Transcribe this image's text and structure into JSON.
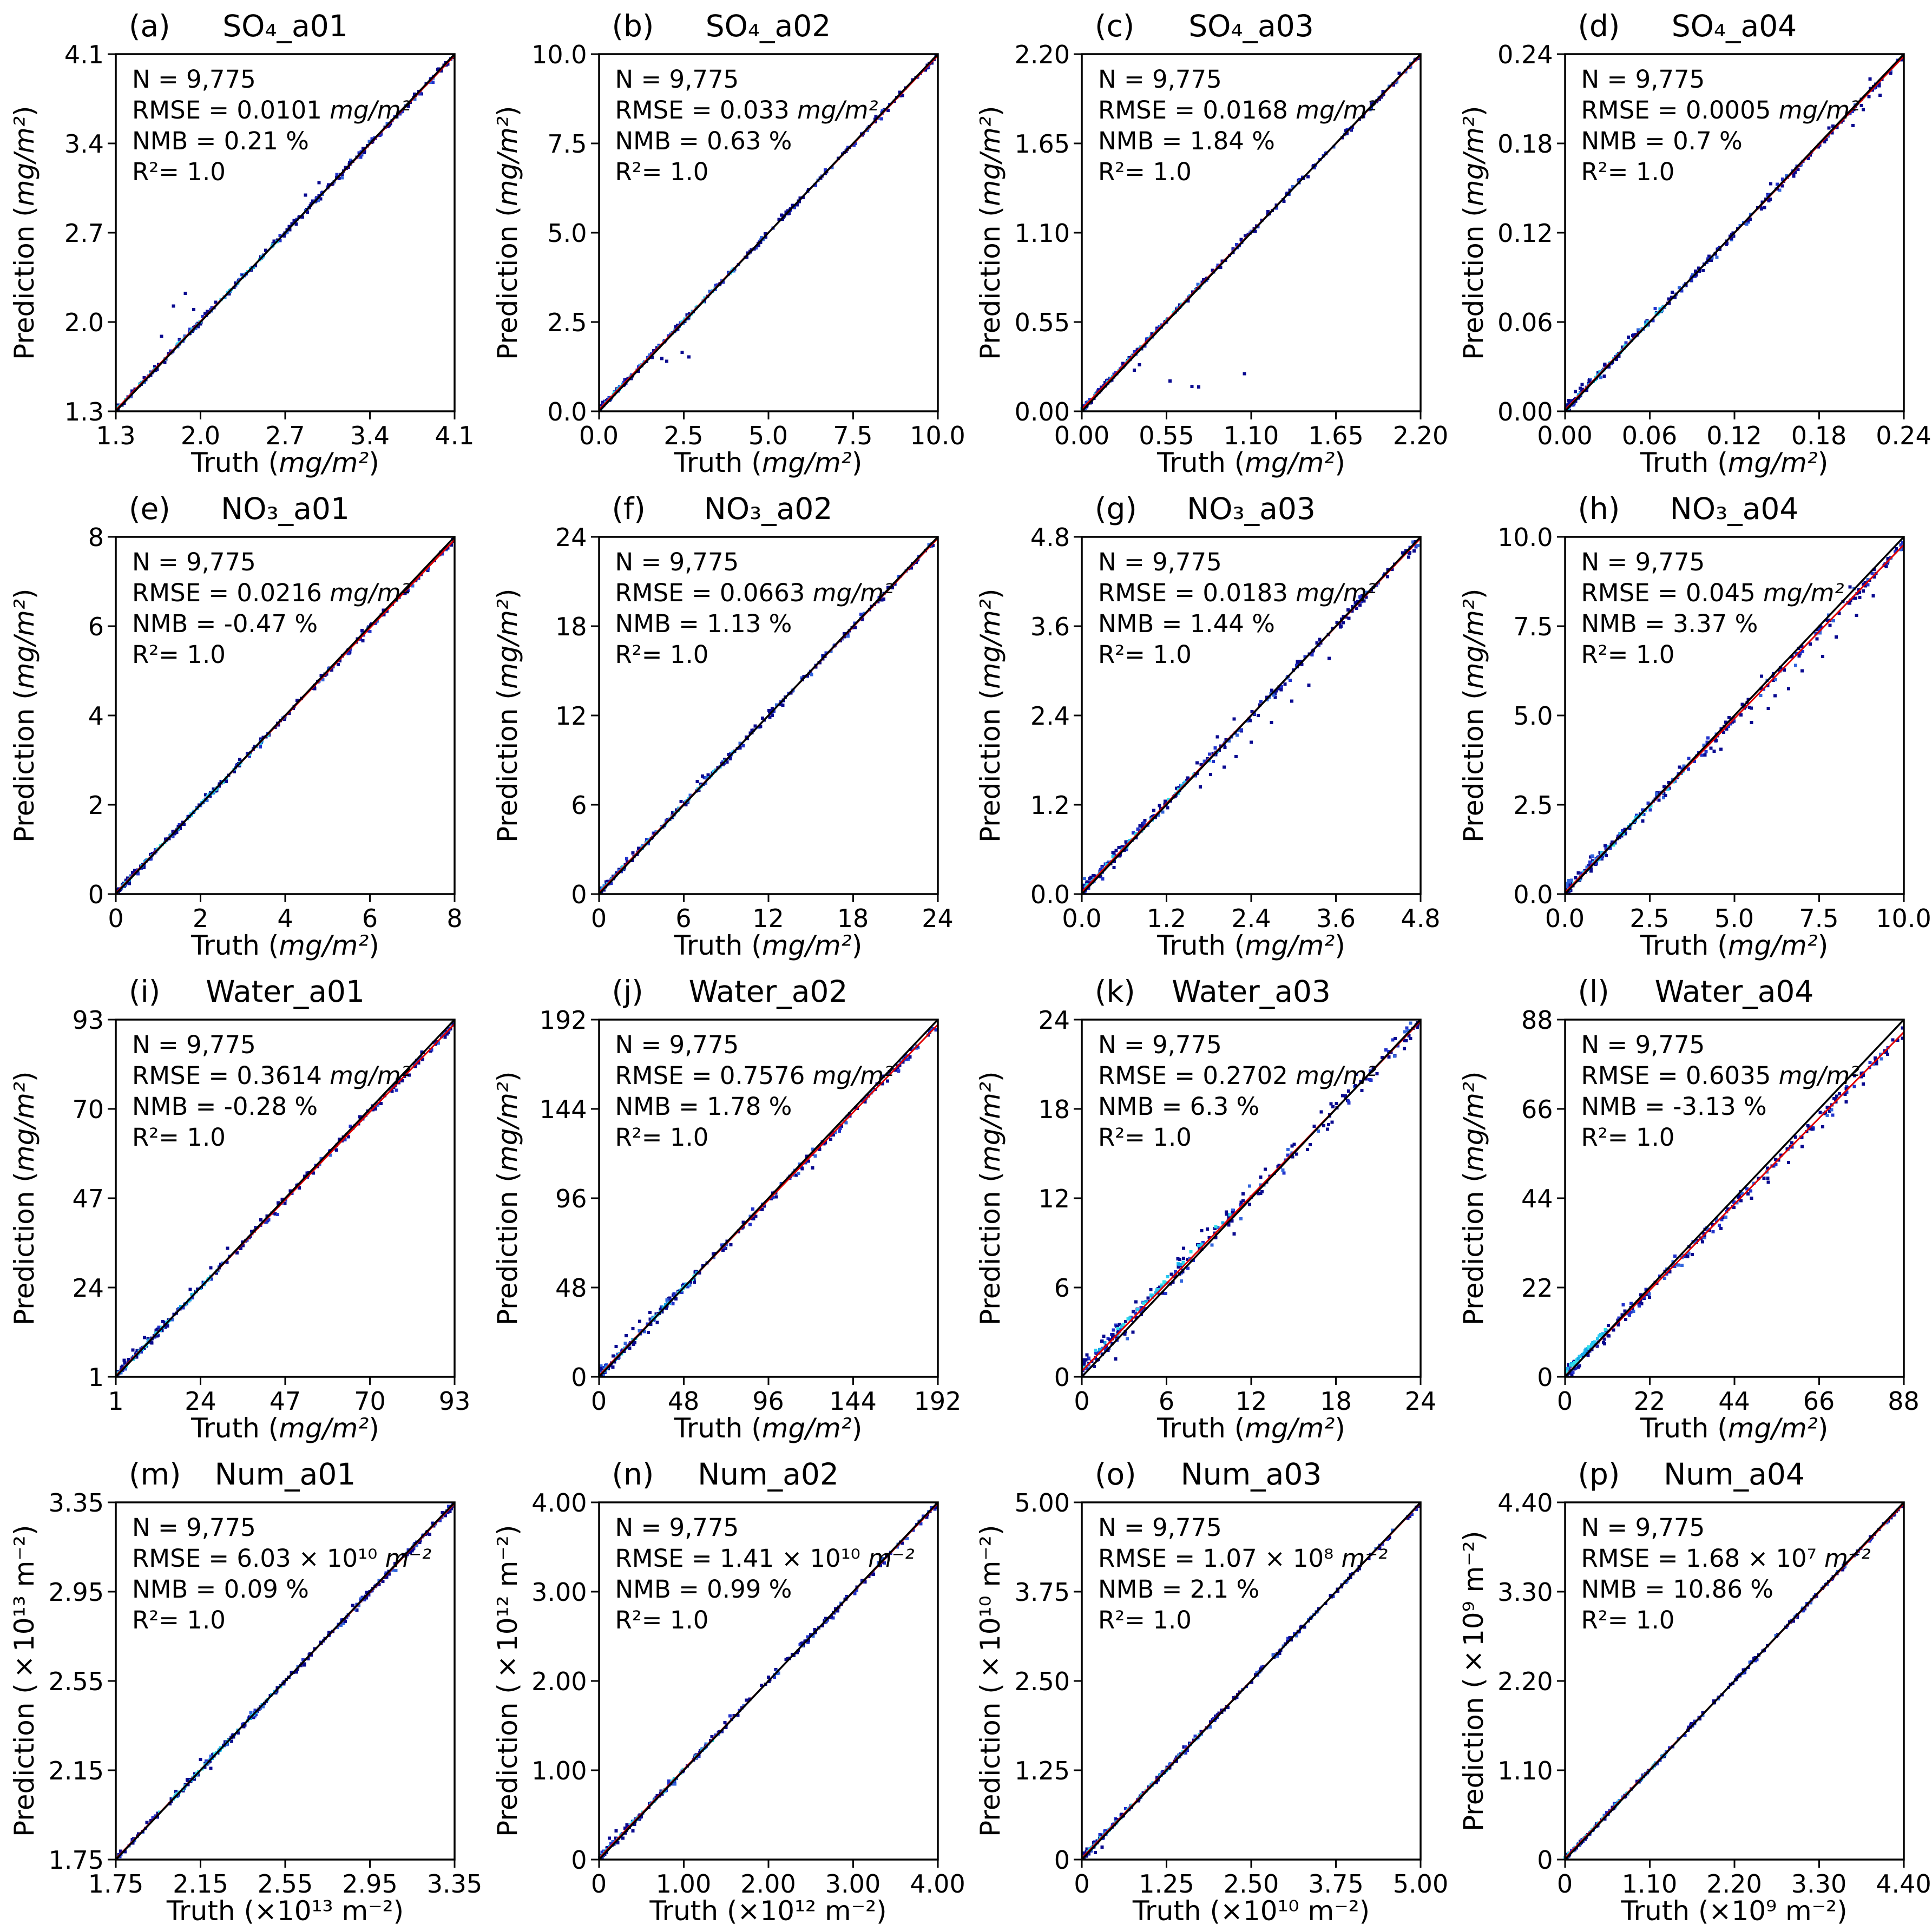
{
  "figure": {
    "rows": 4,
    "cols": 4,
    "background": "#ffffff",
    "identity_line_color": "#000000",
    "regression_line_color": "#e00000",
    "point_palette_dense_low": [
      "#29c8f0",
      "#30dfe8",
      "#18a9e8"
    ],
    "point_palette_main": [
      "#0a0a90",
      "#2233cc",
      "#3366dd"
    ],
    "axis_color": "#000000"
  },
  "chart_data": [
    {
      "type": "scatter",
      "label": "(a)",
      "title": "SO₄_a01",
      "xlabel": "Truth",
      "ylabel": "Prediction",
      "axis_unit": "mg/m²",
      "axis_unit_italic": true,
      "stats": {
        "n": "N = 9,775",
        "rmse_prefix": "RMSE = 0.0101",
        "rmse_unit": "mg/m²",
        "nmb": "NMB = 0.21 %",
        "r2": "R²= 1.0"
      },
      "ticks": [
        "1.3",
        "2.0",
        "2.7",
        "3.4",
        "4.1"
      ],
      "lim": [
        1.3,
        4.1
      ],
      "relationship": "prediction ≈ truth (1:1)",
      "render": {
        "seed": 1,
        "spread": 0.0045,
        "reg_b": 0.004,
        "reg_d": -0.004,
        "low_dense": false,
        "cyan": [
          0.0,
          0.5
        ],
        "cyan_lift": 0,
        "outliers": [
          [
            0.17,
            0.295
          ],
          [
            0.205,
            0.33
          ],
          [
            0.23,
            0.285
          ],
          [
            0.135,
            0.21
          ],
          [
            0.56,
            0.605
          ],
          [
            0.6,
            0.64
          ]
        ]
      }
    },
    {
      "type": "scatter",
      "label": "(b)",
      "title": "SO₄_a02",
      "xlabel": "Truth",
      "ylabel": "Prediction",
      "axis_unit": "mg/m²",
      "axis_unit_italic": true,
      "stats": {
        "n": "N = 9,775",
        "rmse_prefix": "RMSE = 0.033",
        "rmse_unit": "mg/m²",
        "nmb": "NMB = 0.63 %",
        "r2": "R²= 1.0"
      },
      "ticks": [
        "0.0",
        "2.5",
        "5.0",
        "7.5",
        "10.0"
      ],
      "lim": [
        0.0,
        10.0
      ],
      "relationship": "prediction ≈ truth (1:1)",
      "render": {
        "seed": 2,
        "spread": 0.004,
        "reg_b": 0.005,
        "reg_d": -0.004,
        "low_dense": true,
        "cyan": [
          0,
          0.4
        ],
        "cyan_lift": 0,
        "outliers": [
          [
            0.185,
            0.148
          ],
          [
            0.245,
            0.165
          ],
          [
            0.265,
            0.152
          ],
          [
            0.2,
            0.14
          ]
        ]
      }
    },
    {
      "type": "scatter",
      "label": "(c)",
      "title": "SO₄_a03",
      "xlabel": "Truth",
      "ylabel": "Prediction",
      "axis_unit": "mg/m²",
      "axis_unit_italic": true,
      "stats": {
        "n": "N = 9,775",
        "rmse_prefix": "RMSE = 0.0168",
        "rmse_unit": "mg/m²",
        "nmb": "NMB = 1.84 %",
        "r2": "R²= 1.0"
      },
      "ticks": [
        "0.00",
        "0.55",
        "1.10",
        "1.65",
        "2.20"
      ],
      "lim": [
        0.0,
        2.2
      ],
      "relationship": "prediction ≈ truth (1:1)",
      "render": {
        "seed": 3,
        "spread": 0.004,
        "reg_b": 0.006,
        "reg_d": -0.003,
        "low_dense": true,
        "cyan": [
          0,
          0.35
        ],
        "cyan_lift": 0,
        "outliers": [
          [
            0.26,
            0.085
          ],
          [
            0.325,
            0.07
          ],
          [
            0.345,
            0.068
          ],
          [
            0.48,
            0.105
          ],
          [
            0.155,
            0.115
          ],
          [
            0.17,
            0.13
          ]
        ]
      }
    },
    {
      "type": "scatter",
      "label": "(d)",
      "title": "SO₄_a04",
      "xlabel": "Truth",
      "ylabel": "Prediction",
      "axis_unit": "mg/m²",
      "axis_unit_italic": true,
      "stats": {
        "n": "N = 9,775",
        "rmse_prefix": "RMSE = 0.0005",
        "rmse_unit": "mg/m²",
        "nmb": "NMB = 0.7 %",
        "r2": "R²= 1.0"
      },
      "ticks": [
        "0.00",
        "0.06",
        "0.12",
        "0.18",
        "0.24"
      ],
      "lim": [
        0.0,
        0.24
      ],
      "relationship": "prediction ≈ truth (1:1)",
      "render": {
        "seed": 4,
        "spread": 0.007,
        "reg_b": 0.004,
        "reg_d": -0.006,
        "low_dense": true,
        "cyan": [
          0,
          0.3
        ],
        "cyan_lift": 0,
        "outliers": [
          [
            0.03,
            0.055
          ],
          [
            0.05,
            0.075
          ],
          [
            0.88,
            0.845
          ],
          [
            0.93,
            0.885
          ],
          [
            0.85,
            0.8
          ],
          [
            0.9,
            0.93
          ]
        ]
      }
    },
    {
      "type": "scatter",
      "label": "(e)",
      "title": "NO₃_a01",
      "xlabel": "Truth",
      "ylabel": "Prediction",
      "axis_unit": "mg/m²",
      "axis_unit_italic": true,
      "stats": {
        "n": "N = 9,775",
        "rmse_prefix": "RMSE = 0.0216",
        "rmse_unit": "mg/m²",
        "nmb": "NMB = -0.47 %",
        "r2": "R²= 1.0"
      },
      "ticks": [
        "0",
        "2",
        "4",
        "6",
        "8"
      ],
      "lim": [
        0,
        8
      ],
      "relationship": "prediction ≈ truth (1:1)",
      "render": {
        "seed": 5,
        "spread": 0.005,
        "reg_b": 0.003,
        "reg_d": -0.008,
        "low_dense": true,
        "cyan": [
          0,
          0.45
        ],
        "cyan_lift": 0,
        "outliers": []
      }
    },
    {
      "type": "scatter",
      "label": "(f)",
      "title": "NO₃_a02",
      "xlabel": "Truth",
      "ylabel": "Prediction",
      "axis_unit": "mg/m²",
      "axis_unit_italic": true,
      "stats": {
        "n": "N = 9,775",
        "rmse_prefix": "RMSE = 0.0663",
        "rmse_unit": "mg/m²",
        "nmb": "NMB = 1.13 %",
        "r2": "R²= 1.0"
      },
      "ticks": [
        "0",
        "6",
        "12",
        "18",
        "24"
      ],
      "lim": [
        0,
        24
      ],
      "relationship": "prediction ≈ truth (1:1)",
      "render": {
        "seed": 6,
        "spread": 0.005,
        "reg_b": 0.004,
        "reg_d": -0.004,
        "low_dense": true,
        "cyan": [
          0,
          0.4
        ],
        "cyan_lift": 0,
        "outliers": [
          [
            0.29,
            0.315
          ],
          [
            0.305,
            0.33
          ]
        ]
      }
    },
    {
      "type": "scatter",
      "label": "(g)",
      "title": "NO₃_a03",
      "xlabel": "Truth",
      "ylabel": "Prediction",
      "axis_unit": "mg/m²",
      "axis_unit_italic": true,
      "stats": {
        "n": "N = 9,775",
        "rmse_prefix": "RMSE = 0.0183",
        "rmse_unit": "mg/m²",
        "nmb": "NMB = 1.44 %",
        "r2": "R²= 1.0"
      },
      "ticks": [
        "0.0",
        "1.2",
        "2.4",
        "3.6",
        "4.8"
      ],
      "lim": [
        0.0,
        4.8
      ],
      "relationship": "prediction ≈ truth (1:1)",
      "render": {
        "seed": 7,
        "spread": 0.009,
        "reg_b": 0.006,
        "reg_d": -0.004,
        "low_dense": true,
        "cyan": [
          0,
          0.4
        ],
        "cyan_lift": 0,
        "outliers": [
          [
            0.42,
            0.355
          ],
          [
            0.455,
            0.385
          ],
          [
            0.38,
            0.335
          ],
          [
            0.5,
            0.425
          ],
          [
            0.56,
            0.48
          ],
          [
            0.35,
            0.3
          ],
          [
            0.62,
            0.54
          ],
          [
            0.67,
            0.585
          ],
          [
            0.73,
            0.66
          ],
          [
            0.4,
            0.44
          ],
          [
            0.45,
            0.49
          ]
        ]
      }
    },
    {
      "type": "scatter",
      "label": "(h)",
      "title": "NO₃_a04",
      "xlabel": "Truth",
      "ylabel": "Prediction",
      "axis_unit": "mg/m²",
      "axis_unit_italic": true,
      "stats": {
        "n": "N = 9,775",
        "rmse_prefix": "RMSE = 0.045",
        "rmse_unit": "mg/m²",
        "nmb": "NMB = 3.37 %",
        "r2": "R²= 1.0"
      },
      "ticks": [
        "0.0",
        "2.5",
        "5.0",
        "7.5",
        "10.0"
      ],
      "lim": [
        0.0,
        10.0
      ],
      "relationship": "prediction slightly below truth at high values",
      "render": {
        "seed": 8,
        "spread": 0.01,
        "reg_b": 0.005,
        "reg_d": -0.022,
        "low_dense": true,
        "cyan": [
          0,
          0.35
        ],
        "cyan_lift": 0,
        "outliers": [
          [
            0.55,
            0.48
          ],
          [
            0.6,
            0.52
          ],
          [
            0.66,
            0.575
          ],
          [
            0.7,
            0.625
          ],
          [
            0.76,
            0.665
          ],
          [
            0.8,
            0.72
          ],
          [
            0.86,
            0.78
          ],
          [
            0.62,
            0.555
          ],
          [
            0.46,
            0.405
          ],
          [
            0.91,
            0.835
          ],
          [
            0.58,
            0.61
          ],
          [
            0.44,
            0.4
          ]
        ]
      }
    },
    {
      "type": "scatter",
      "label": "(i)",
      "title": "Water_a01",
      "xlabel": "Truth",
      "ylabel": "Prediction",
      "axis_unit": "mg/m²",
      "axis_unit_italic": true,
      "stats": {
        "n": "N = 9,775",
        "rmse_prefix": "RMSE = 0.3614",
        "rmse_unit": "mg/m²",
        "nmb": "NMB = -0.28 %",
        "r2": "R²= 1.0"
      },
      "ticks": [
        "1",
        "24",
        "47",
        "70",
        "93"
      ],
      "lim": [
        1,
        93
      ],
      "relationship": "prediction ≈ truth (1:1)",
      "render": {
        "seed": 9,
        "spread": 0.007,
        "reg_b": 0.003,
        "reg_d": -0.012,
        "low_dense": true,
        "cyan": [
          0,
          0.3
        ],
        "cyan_lift": 0,
        "outliers": [
          [
            0.05,
            0.075
          ],
          [
            0.085,
            0.11
          ],
          [
            0.22,
            0.245
          ],
          [
            0.28,
            0.305
          ],
          [
            0.33,
            0.36
          ]
        ]
      }
    },
    {
      "type": "scatter",
      "label": "(j)",
      "title": "Water_a02",
      "xlabel": "Truth",
      "ylabel": "Prediction",
      "axis_unit": "mg/m²",
      "axis_unit_italic": true,
      "stats": {
        "n": "N = 9,775",
        "rmse_prefix": "RMSE = 0.7576",
        "rmse_unit": "mg/m²",
        "nmb": "NMB = 1.78 %",
        "r2": "R²= 1.0"
      },
      "ticks": [
        "0",
        "48",
        "96",
        "144",
        "192"
      ],
      "lim": [
        0,
        192
      ],
      "relationship": "prediction ≈ truth (1:1)",
      "render": {
        "seed": 10,
        "spread": 0.007,
        "reg_b": 0.004,
        "reg_d": -0.014,
        "low_dense": true,
        "cyan": [
          0,
          0.3
        ],
        "cyan_lift": 0,
        "outliers": [
          [
            0.05,
            0.085
          ],
          [
            0.1,
            0.135
          ],
          [
            0.15,
            0.18
          ],
          [
            0.63,
            0.585
          ],
          [
            0.08,
            0.115
          ],
          [
            0.12,
            0.155
          ]
        ]
      }
    },
    {
      "type": "scatter",
      "label": "(k)",
      "title": "Water_a03",
      "xlabel": "Truth",
      "ylabel": "Prediction",
      "axis_unit": "mg/m²",
      "axis_unit_italic": true,
      "stats": {
        "n": "N = 9,775",
        "rmse_prefix": "RMSE = 0.2702",
        "rmse_unit": "mg/m²",
        "nmb": "NMB = 6.3 %",
        "r2": "R²= 1.0"
      },
      "ticks": [
        "0",
        "6",
        "12",
        "18",
        "24"
      ],
      "lim": [
        0,
        24
      ],
      "relationship": "wider scatter, prediction slightly above truth at low values",
      "render": {
        "seed": 11,
        "spread": 0.016,
        "reg_b": 0.016,
        "reg_d": -0.004,
        "low_dense": true,
        "cyan": [
          0,
          0.45
        ],
        "cyan_lift": 0.01,
        "outliers": [
          [
            0.1,
            0.05
          ],
          [
            0.16,
            0.21
          ],
          [
            0.06,
            0.1
          ],
          [
            0.3,
            0.36
          ],
          [
            0.45,
            0.4
          ]
        ]
      }
    },
    {
      "type": "scatter",
      "label": "(l)",
      "title": "Water_a04",
      "xlabel": "Truth",
      "ylabel": "Prediction",
      "axis_unit": "mg/m²",
      "axis_unit_italic": true,
      "stats": {
        "n": "N = 9,775",
        "rmse_prefix": "RMSE = 0.6035",
        "rmse_unit": "mg/m²",
        "nmb": "NMB = -3.13 %",
        "r2": "R²= 1.0"
      },
      "ticks": [
        "0",
        "22",
        "44",
        "66",
        "88"
      ],
      "lim": [
        0,
        88
      ],
      "relationship": "prediction below truth at high values",
      "render": {
        "seed": 12,
        "spread": 0.01,
        "reg_b": 0.002,
        "reg_d": -0.035,
        "low_dense": true,
        "cyan": [
          0,
          0.12
        ],
        "cyan_lift": 0.012,
        "outliers": [
          [
            0.55,
            0.5
          ],
          [
            0.6,
            0.545
          ],
          [
            0.66,
            0.6
          ],
          [
            0.7,
            0.645
          ],
          [
            0.46,
            0.415
          ],
          [
            0.76,
            0.7
          ],
          [
            0.83,
            0.77
          ],
          [
            0.88,
            0.82
          ]
        ]
      }
    },
    {
      "type": "scatter",
      "label": "(m)",
      "title": "Num_a01",
      "xlabel": "Truth",
      "ylabel": "Prediction",
      "axis_unit": "×10¹³ m⁻²",
      "axis_unit_italic": false,
      "stats": {
        "n": "N = 9,775",
        "rmse_prefix": "RMSE = 6.03 × 10¹⁰",
        "rmse_unit": "m⁻²",
        "nmb": "NMB = 0.09 %",
        "r2": "R²= 1.0"
      },
      "ticks": [
        "1.75",
        "2.15",
        "2.55",
        "2.95",
        "3.35"
      ],
      "lim": [
        1.75,
        3.35
      ],
      "relationship": "prediction ≈ truth (1:1)",
      "render": {
        "seed": 13,
        "spread": 0.005,
        "reg_b": 0.002,
        "reg_d": -0.003,
        "low_dense": false,
        "cyan": [
          0.1,
          0.5
        ],
        "cyan_lift": 0,
        "outliers": [
          [
            0.25,
            0.28
          ],
          [
            0.28,
            0.255
          ]
        ]
      }
    },
    {
      "type": "scatter",
      "label": "(n)",
      "title": "Num_a02",
      "xlabel": "Truth",
      "ylabel": "Prediction",
      "axis_unit": "×10¹² m⁻²",
      "axis_unit_italic": false,
      "stats": {
        "n": "N = 9,775",
        "rmse_prefix": "RMSE = 1.41 × 10¹⁰",
        "rmse_unit": "m⁻²",
        "nmb": "NMB = 0.99 %",
        "r2": "R²= 1.0"
      },
      "ticks": [
        "0",
        "1.00",
        "2.00",
        "3.00",
        "4.00"
      ],
      "lim": [
        0,
        4.0
      ],
      "relationship": "prediction ≈ truth (1:1)",
      "render": {
        "seed": 14,
        "spread": 0.005,
        "reg_b": 0.004,
        "reg_d": -0.003,
        "low_dense": true,
        "cyan": [
          0,
          0.35
        ],
        "cyan_lift": 0,
        "outliers": [
          [
            0.03,
            0.06
          ],
          [
            0.05,
            0.08
          ],
          [
            0.07,
            0.06
          ],
          [
            0.1,
            0.08
          ]
        ]
      }
    },
    {
      "type": "scatter",
      "label": "(o)",
      "title": "Num_a03",
      "xlabel": "Truth",
      "ylabel": "Prediction",
      "axis_unit": "×10¹⁰ m⁻²",
      "axis_unit_italic": false,
      "stats": {
        "n": "N = 9,775",
        "rmse_prefix": "RMSE = 1.07 × 10⁸",
        "rmse_unit": "m⁻²",
        "nmb": "NMB = 2.1 %",
        "r2": "R²= 1.0"
      },
      "ticks": [
        "0",
        "1.25",
        "2.50",
        "3.75",
        "5.00"
      ],
      "lim": [
        0,
        5.0
      ],
      "relationship": "prediction ≈ truth (1:1)",
      "render": {
        "seed": 15,
        "spread": 0.004,
        "reg_b": 0.004,
        "reg_d": -0.002,
        "low_dense": true,
        "cyan": [
          0,
          0.35
        ],
        "cyan_lift": 0,
        "outliers": [
          [
            0.04,
            0.02
          ],
          [
            0.06,
            0.035
          ]
        ]
      }
    },
    {
      "type": "scatter",
      "label": "(p)",
      "title": "Num_a04",
      "xlabel": "Truth",
      "ylabel": "Prediction",
      "axis_unit": "×10⁹ m⁻²",
      "axis_unit_italic": false,
      "stats": {
        "n": "N = 9,775",
        "rmse_prefix": "RMSE = 1.68 × 10⁷",
        "rmse_unit": "m⁻²",
        "nmb": "NMB = 10.86 %",
        "r2": "R²= 1.0"
      },
      "ticks": [
        "0",
        "1.10",
        "2.20",
        "3.30",
        "4.40"
      ],
      "lim": [
        0,
        4.4
      ],
      "relationship": "prediction ≈ truth (1:1)",
      "render": {
        "seed": 16,
        "spread": 0.003,
        "reg_b": 0.004,
        "reg_d": -0.004,
        "low_dense": true,
        "cyan": [
          0,
          0.3
        ],
        "cyan_lift": 0,
        "outliers": []
      }
    }
  ]
}
